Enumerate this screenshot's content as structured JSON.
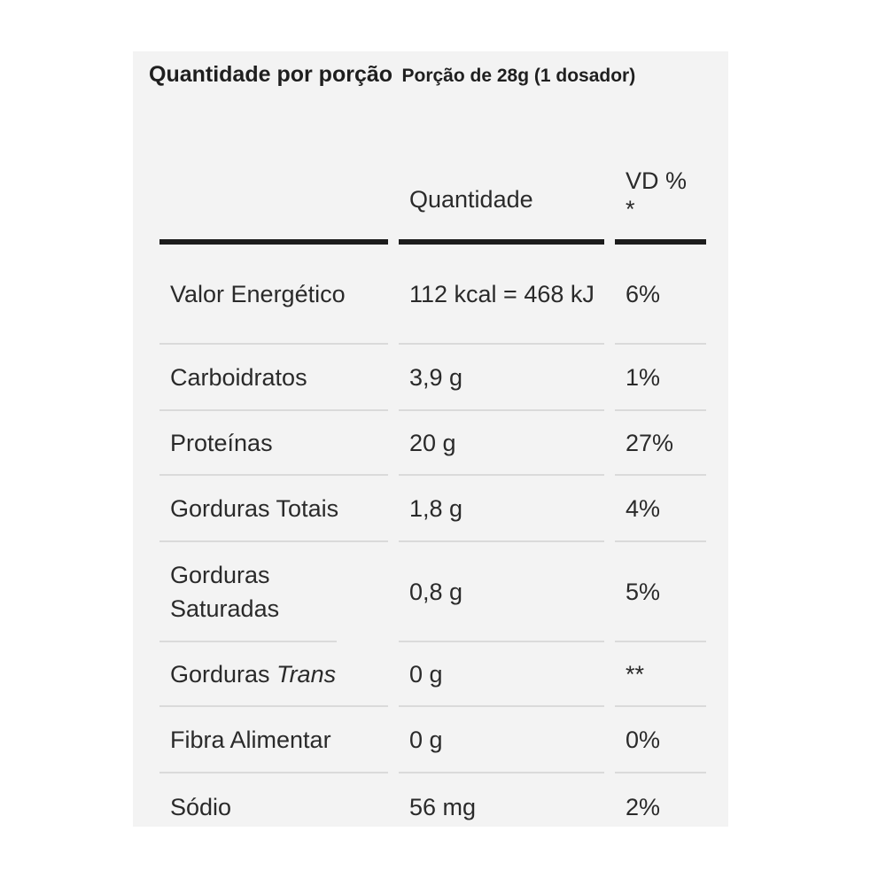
{
  "header": {
    "title": "Quantidade por porção",
    "serving": "Porção de 28g (1 dosador)"
  },
  "columns": {
    "nutrient": "",
    "amount": "Quantidade",
    "dv": "VD % *"
  },
  "rows": [
    {
      "nutrient": "Valor Energético",
      "amount": "112 kcal = 468 kJ",
      "dv": "6%"
    },
    {
      "nutrient": "Carboidratos",
      "amount": "3,9 g",
      "dv": "1%"
    },
    {
      "nutrient": "Proteínas",
      "amount": "20 g",
      "dv": "27%"
    },
    {
      "nutrient": "Gorduras Totais",
      "amount": "1,8 g",
      "dv": "4%"
    },
    {
      "nutrient": "Gorduras Saturadas",
      "amount": "0,8 g",
      "dv": "5%"
    },
    {
      "nutrient": "Gorduras",
      "nutrient_italic": "Trans",
      "amount": "0 g",
      "dv": "**"
    },
    {
      "nutrient": "Fibra Alimentar",
      "amount": "0 g",
      "dv": "0%"
    },
    {
      "nutrient": "Sódio",
      "amount": "56 mg",
      "dv": "2%"
    }
  ]
}
